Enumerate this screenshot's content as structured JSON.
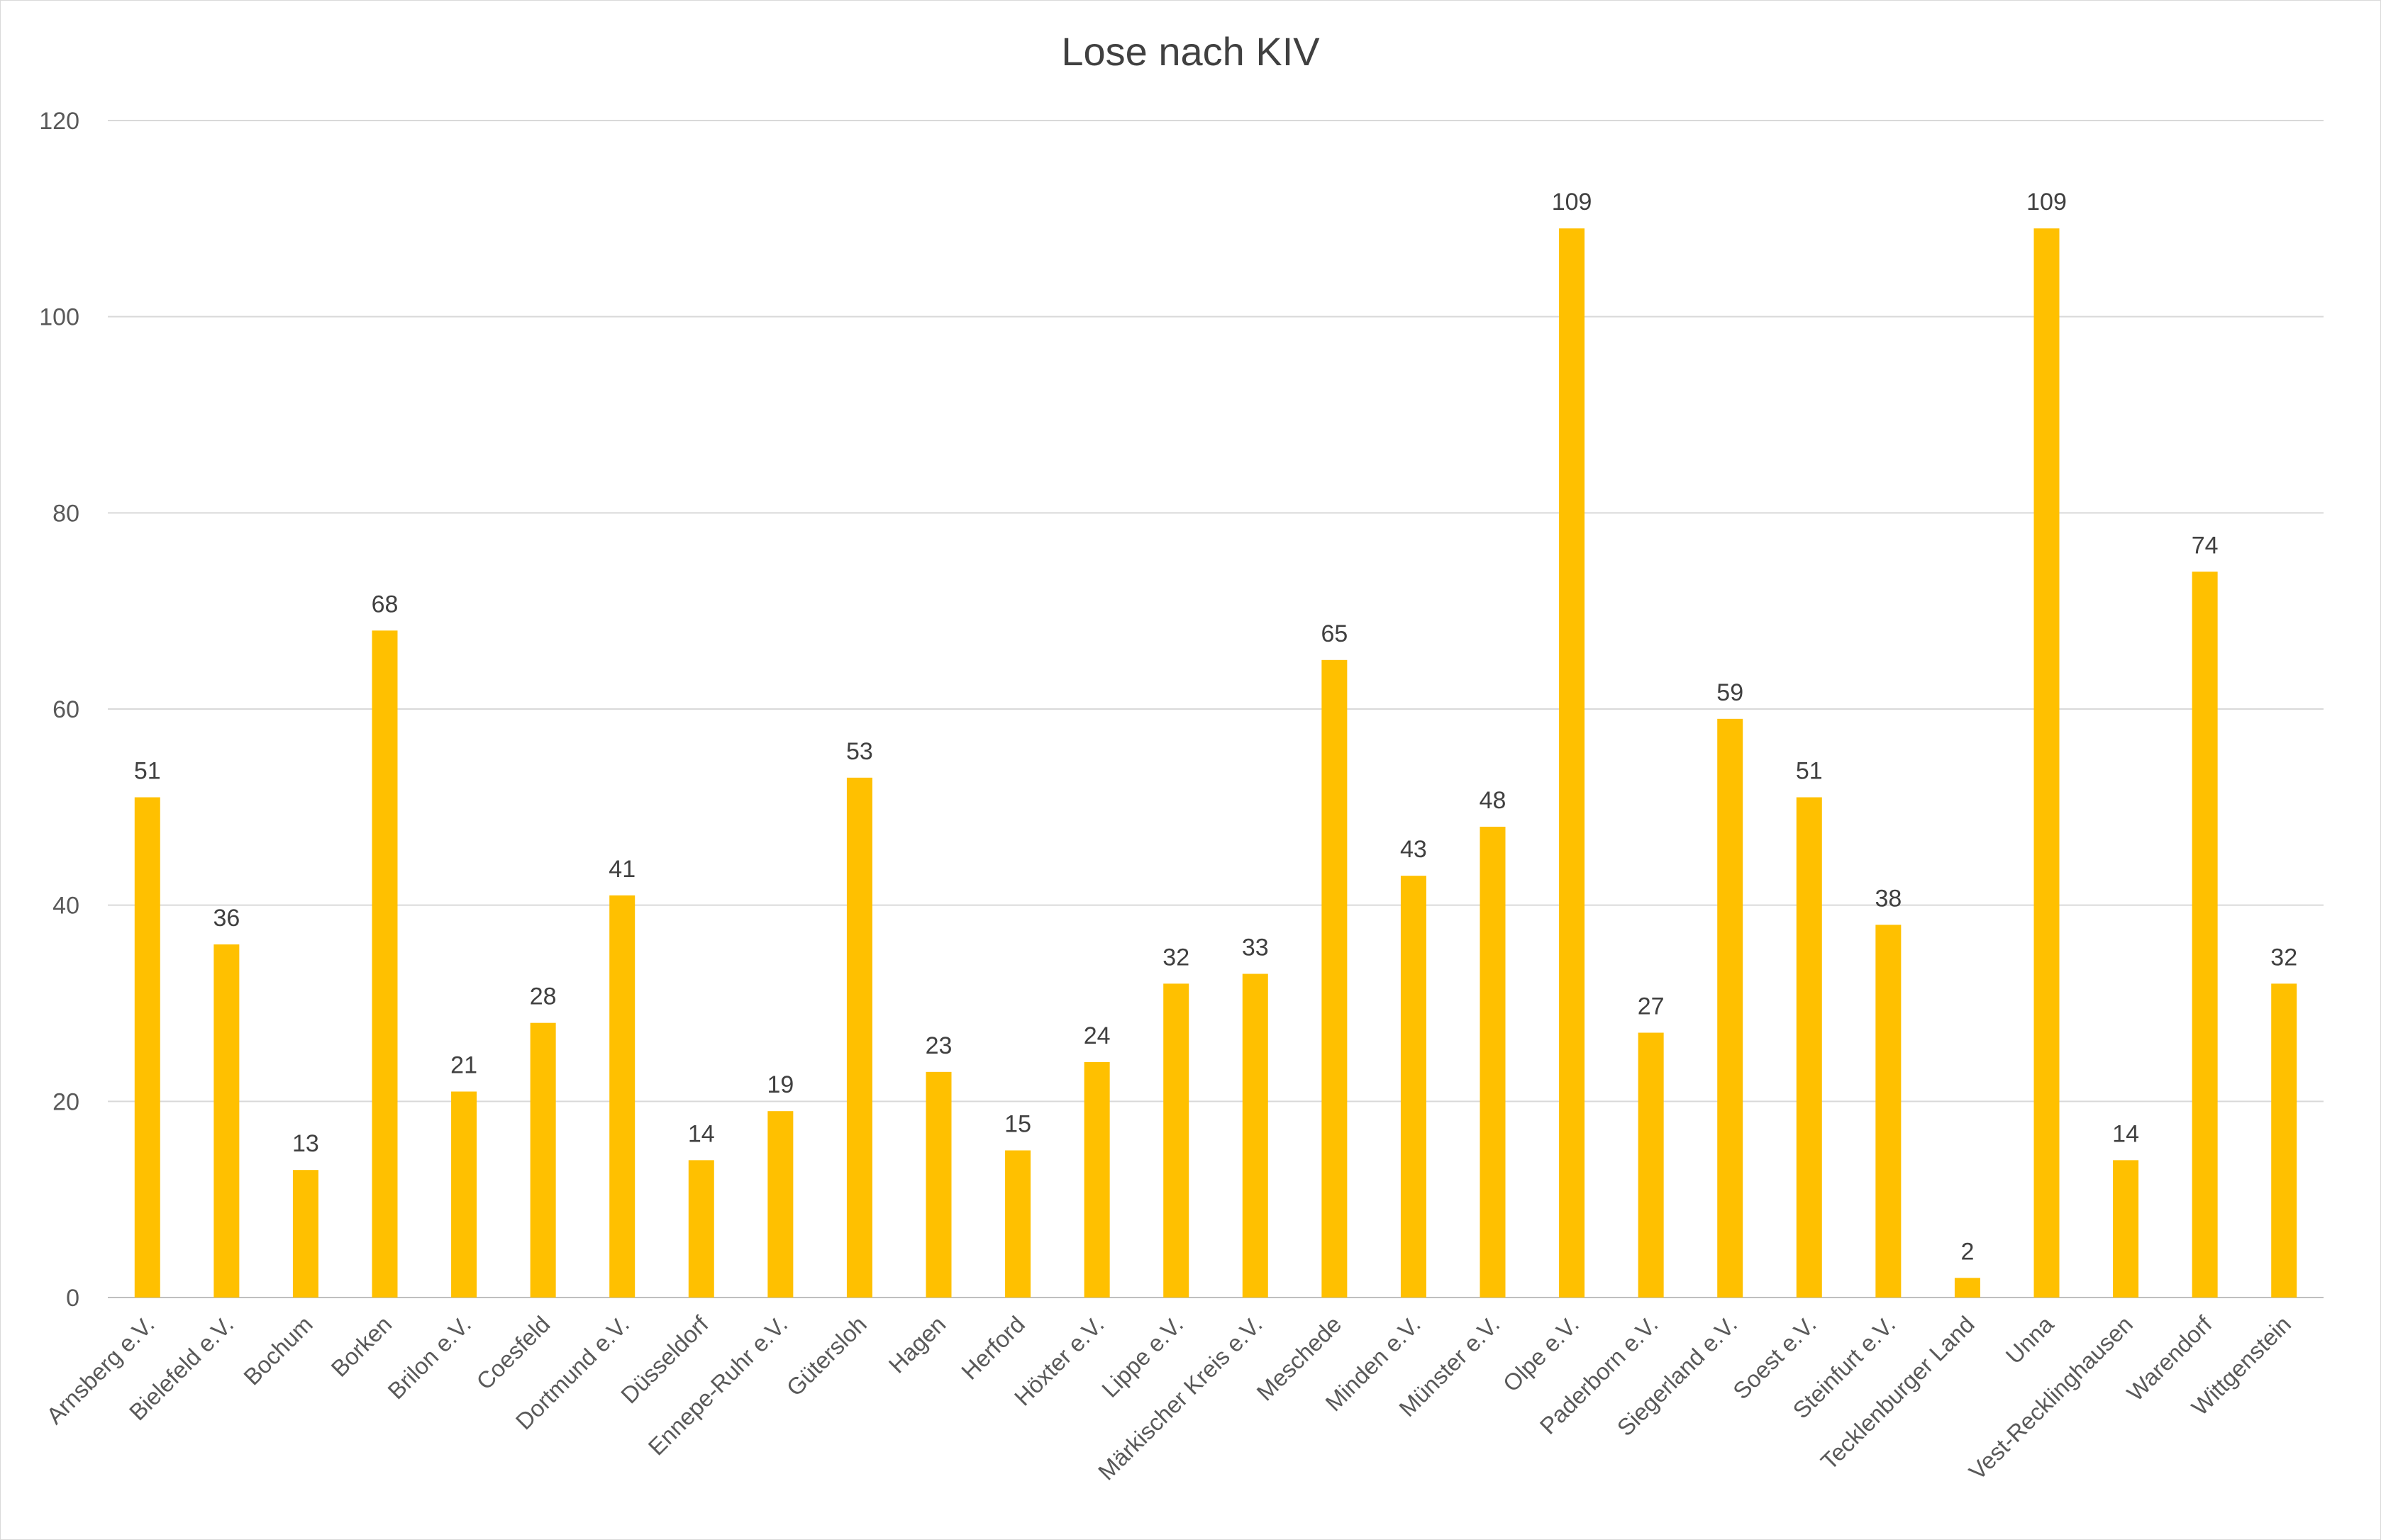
{
  "chart_data": {
    "type": "bar",
    "title": "Lose nach KIV",
    "xlabel": "",
    "ylabel": "",
    "ylim": [
      0,
      120
    ],
    "yticks": [
      0,
      20,
      40,
      60,
      80,
      100,
      120
    ],
    "grid": true,
    "legend": "none",
    "bar_color": "#FFC000",
    "categories": [
      "Arnsberg e.V.",
      "Bielefeld e.V.",
      "Bochum",
      "Borken",
      "Brilon e.V.",
      "Coesfeld",
      "Dortmund e.V.",
      "Düsseldorf",
      "Ennepe-Ruhr e.V.",
      "Gütersloh",
      "Hagen",
      "Herford",
      "Höxter e.V.",
      "Lippe e.V.",
      "Märkischer Kreis e.V.",
      "Meschede",
      "Minden e.V.",
      "Münster e.V.",
      "Olpe e.V.",
      "Paderborn e.V.",
      "Siegerland e.V.",
      "Soest e.V.",
      "Steinfurt e.V.",
      "Tecklenburger Land",
      "Unna",
      "Vest-Recklinghausen",
      "Warendorf",
      "Wittgenstein"
    ],
    "values": [
      51,
      36,
      13,
      68,
      21,
      28,
      41,
      14,
      19,
      53,
      23,
      15,
      24,
      32,
      33,
      65,
      43,
      48,
      109,
      27,
      59,
      51,
      38,
      2,
      109,
      14,
      74,
      32
    ]
  }
}
